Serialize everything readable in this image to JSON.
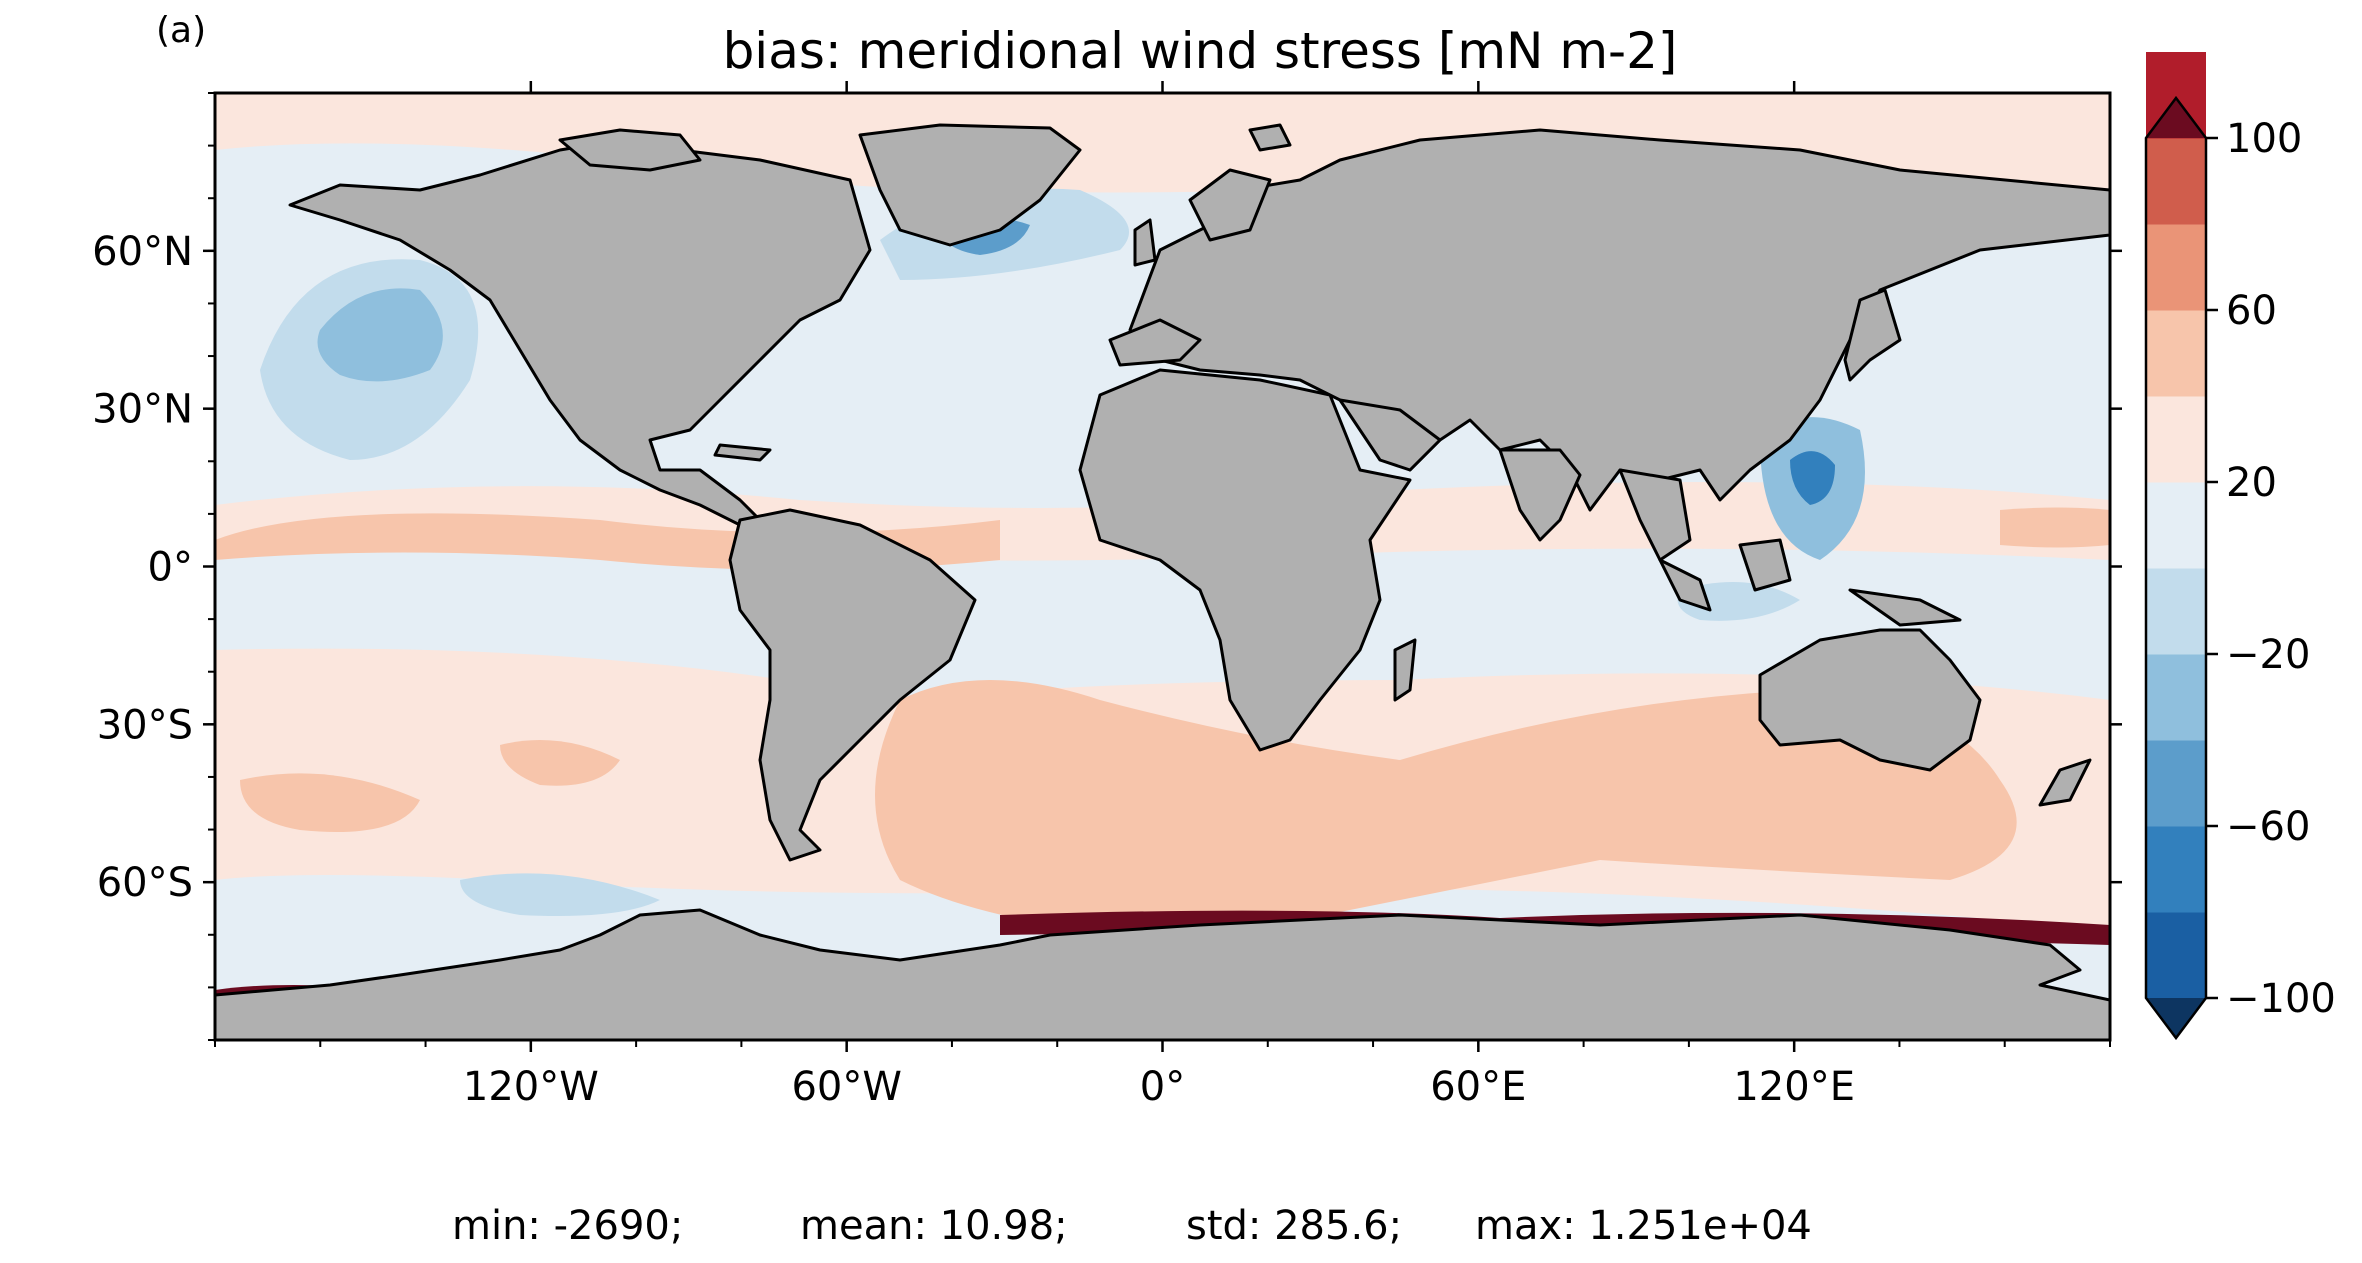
{
  "panel_label": "(a)",
  "title": "bias: meridional wind stress [mN m-2]",
  "map": {
    "projection": "PlateCarree",
    "land_color": "#b0b0b0",
    "coastline_color": "#000000",
    "lon_range": [
      -180,
      180
    ],
    "lat_range": [
      -90,
      90
    ],
    "x_ticks": [
      {
        "value": -120,
        "label": "120°W"
      },
      {
        "value": -60,
        "label": "60°W"
      },
      {
        "value": 0,
        "label": "0°"
      },
      {
        "value": 60,
        "label": "60°E"
      },
      {
        "value": 120,
        "label": "120°E"
      }
    ],
    "y_ticks": [
      {
        "value": 60,
        "label": "60°N"
      },
      {
        "value": 30,
        "label": "30°N"
      },
      {
        "value": 0,
        "label": "0°"
      },
      {
        "value": -30,
        "label": "30°S"
      },
      {
        "value": -60,
        "label": "60°S"
      }
    ]
  },
  "colorbar": {
    "extend": "both",
    "levels": [
      -100,
      -80,
      -60,
      -40,
      -20,
      0,
      20,
      40,
      60,
      80,
      100
    ],
    "colors": [
      "#1a5fa3",
      "#3280bd",
      "#5c9dcb",
      "#8fbfdd",
      "#c2dcec",
      "#e5eef5",
      "#fbe6dd",
      "#f7c5ab",
      "#ea9477",
      "#d05d4c",
      "#b11d2b"
    ],
    "under_color": "#0d3561",
    "over_color": "#6b0b20",
    "tick_labels": [
      {
        "value": 100,
        "label": "100"
      },
      {
        "value": 60,
        "label": "60"
      },
      {
        "value": 20,
        "label": "20"
      },
      {
        "value": -20,
        "label": "−20"
      },
      {
        "value": -60,
        "label": "−60"
      },
      {
        "value": -100,
        "label": "−100"
      }
    ]
  },
  "stats": {
    "min": "min: -2690;",
    "mean": "mean: 10.98;",
    "std": "std: 285.6;",
    "max": "max: 1.251e+04"
  }
}
